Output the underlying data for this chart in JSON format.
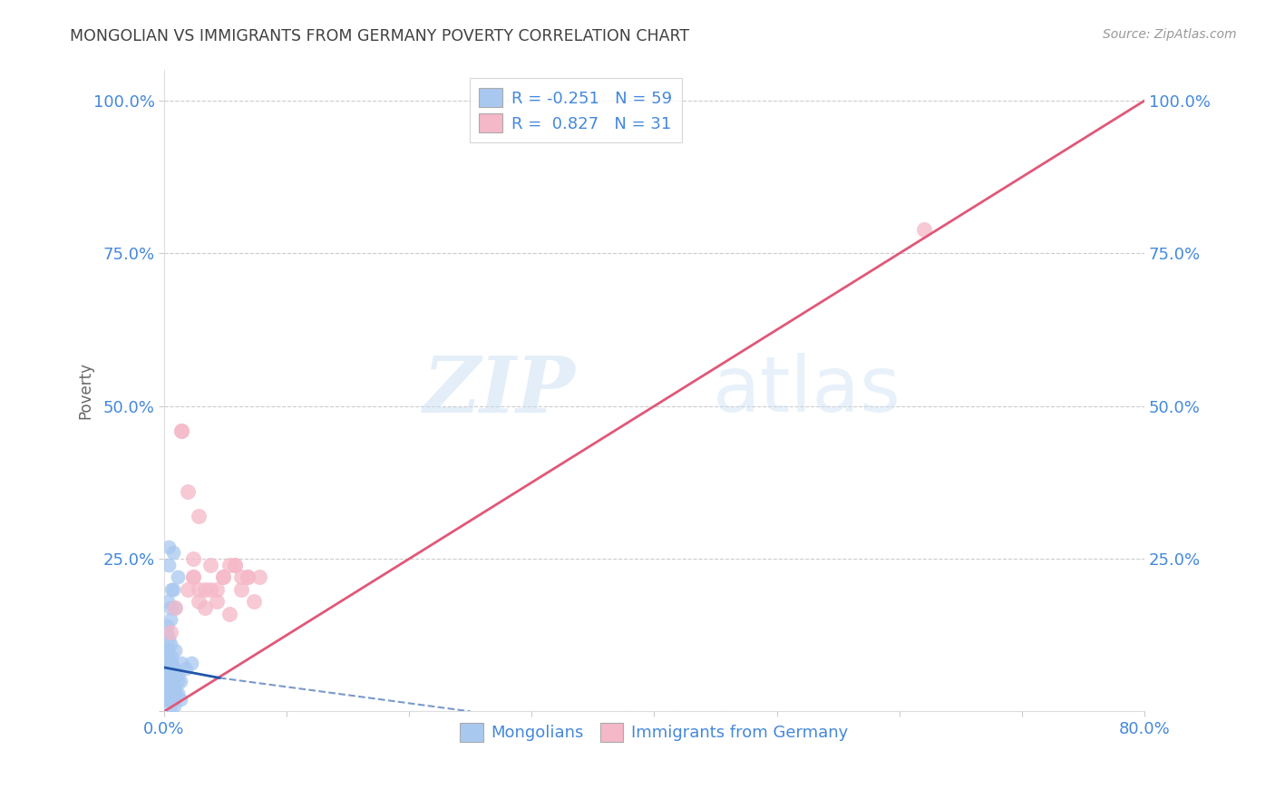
{
  "title": "MONGOLIAN VS IMMIGRANTS FROM GERMANY POVERTY CORRELATION CHART",
  "source": "Source: ZipAtlas.com",
  "ylabel_label": "Poverty",
  "legend_blue_r": "R = -0.251",
  "legend_blue_n": "N = 59",
  "legend_pink_r": "R =  0.827",
  "legend_pink_n": "N = 31",
  "legend_label_blue": "Mongolians",
  "legend_label_pink": "Immigrants from Germany",
  "blue_color": "#a8c8f0",
  "pink_color": "#f5b8c8",
  "blue_line_color": "#2255aa",
  "pink_line_color": "#e05878",
  "title_color": "#404040",
  "axis_label_color": "#4488dd",
  "watermark_zip": "ZIP",
  "watermark_atlas": "atlas",
  "blue_dots_x": [
    0.004,
    0.007,
    0.011,
    0.006,
    0.003,
    0.005,
    0.004,
    0.009,
    0.014,
    0.018,
    0.004,
    0.007,
    0.009,
    0.002,
    0.005,
    0.006,
    0.003,
    0.008,
    0.011,
    0.004,
    0.005,
    0.002,
    0.003,
    0.006,
    0.009,
    0.013,
    0.007,
    0.004,
    0.005,
    0.003,
    0.002,
    0.006,
    0.008,
    0.011,
    0.004,
    0.005,
    0.007,
    0.009,
    0.013,
    0.003,
    0.002,
    0.005,
    0.006,
    0.004,
    0.007,
    0.009,
    0.011,
    0.003,
    0.004,
    0.006,
    0.002,
    0.005,
    0.007,
    0.022,
    0.004,
    0.003,
    0.006,
    0.005,
    0.008
  ],
  "blue_dots_y": [
    0.27,
    0.26,
    0.22,
    0.2,
    0.18,
    0.15,
    0.12,
    0.1,
    0.08,
    0.07,
    0.24,
    0.2,
    0.17,
    0.14,
    0.11,
    0.09,
    0.07,
    0.06,
    0.05,
    0.04,
    0.17,
    0.13,
    0.1,
    0.08,
    0.06,
    0.05,
    0.04,
    0.03,
    0.03,
    0.02,
    0.1,
    0.08,
    0.07,
    0.06,
    0.05,
    0.04,
    0.03,
    0.03,
    0.02,
    0.02,
    0.08,
    0.06,
    0.05,
    0.04,
    0.04,
    0.03,
    0.03,
    0.02,
    0.02,
    0.02,
    0.06,
    0.05,
    0.04,
    0.08,
    0.03,
    0.02,
    0.02,
    0.01,
    0.01
  ],
  "pink_dots_x": [
    0.005,
    0.014,
    0.019,
    0.024,
    0.028,
    0.038,
    0.048,
    0.058,
    0.068,
    0.078,
    0.009,
    0.019,
    0.028,
    0.033,
    0.043,
    0.053,
    0.063,
    0.073,
    0.024,
    0.033,
    0.014,
    0.024,
    0.038,
    0.048,
    0.058,
    0.068,
    0.043,
    0.028,
    0.053,
    0.063,
    0.62
  ],
  "pink_dots_y": [
    0.13,
    0.46,
    0.36,
    0.25,
    0.32,
    0.24,
    0.22,
    0.24,
    0.22,
    0.22,
    0.17,
    0.2,
    0.18,
    0.2,
    0.18,
    0.16,
    0.2,
    0.18,
    0.22,
    0.17,
    0.46,
    0.22,
    0.2,
    0.22,
    0.24,
    0.22,
    0.2,
    0.2,
    0.24,
    0.22,
    0.79
  ],
  "xlim": [
    0.0,
    0.8
  ],
  "ylim": [
    0.0,
    1.05
  ],
  "pink_line_x": [
    0.0,
    0.8
  ],
  "pink_line_y": [
    0.0,
    1.0
  ],
  "blue_line_x": [
    0.0,
    0.25
  ],
  "blue_line_y": [
    0.07,
    0.0
  ]
}
